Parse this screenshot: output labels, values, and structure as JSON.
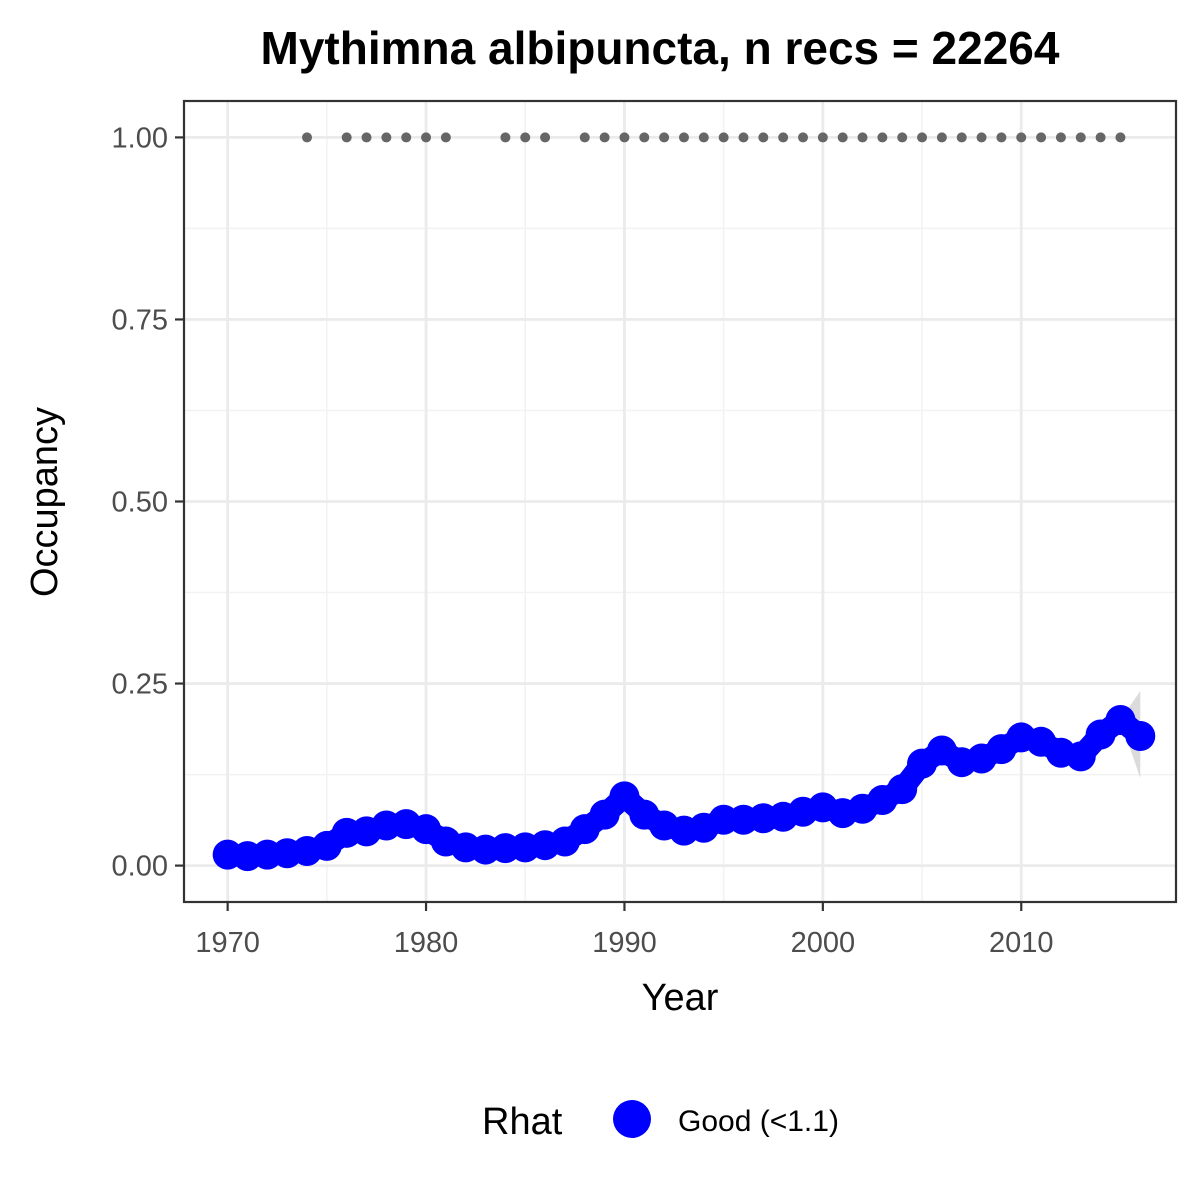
{
  "chart_data": {
    "type": "line",
    "title": "Mythimna albipuncta, n recs = 22264",
    "xlabel": "Year",
    "ylabel": "Occupancy",
    "xlim": [
      1967.8,
      2017.8
    ],
    "ylim": [
      -0.05,
      1.05
    ],
    "x_ticks": [
      1970,
      1980,
      1990,
      2000,
      2010
    ],
    "x_tick_labels": [
      "1970",
      "1980",
      "1990",
      "2000",
      "2010"
    ],
    "y_ticks": [
      0,
      0.25,
      0.5,
      0.75,
      1.0
    ],
    "y_tick_labels": [
      "0.00",
      "0.25",
      "0.50",
      "0.75",
      "1.00"
    ],
    "grid": true,
    "legend": {
      "position": "bottom",
      "title": "Rhat",
      "entries": [
        {
          "label": "Good (<1.1)",
          "color": "#0000ff"
        }
      ]
    },
    "series": [
      {
        "type": "line-points",
        "color": "#0000ff",
        "x": [
          1970,
          1971,
          1972,
          1973,
          1974,
          1975,
          1976,
          1977,
          1978,
          1979,
          1980,
          1981,
          1982,
          1983,
          1984,
          1985,
          1986,
          1987,
          1988,
          1989,
          1990,
          1991,
          1992,
          1993,
          1994,
          1995,
          1996,
          1997,
          1998,
          1999,
          2000,
          2001,
          2002,
          2003,
          2004,
          2005,
          2006,
          2007,
          2008,
          2009,
          2010,
          2011,
          2012,
          2013,
          2014,
          2015,
          2016
        ],
        "values": [
          0.015,
          0.013,
          0.015,
          0.017,
          0.02,
          0.027,
          0.045,
          0.047,
          0.055,
          0.057,
          0.05,
          0.033,
          0.025,
          0.022,
          0.024,
          0.025,
          0.028,
          0.033,
          0.05,
          0.07,
          0.095,
          0.07,
          0.055,
          0.048,
          0.052,
          0.063,
          0.063,
          0.065,
          0.067,
          0.074,
          0.08,
          0.072,
          0.078,
          0.09,
          0.105,
          0.14,
          0.158,
          0.142,
          0.147,
          0.16,
          0.176,
          0.17,
          0.155,
          0.15,
          0.18,
          0.2,
          0.178
        ]
      },
      {
        "type": "records-dots",
        "color": "#666666",
        "x": [
          1974,
          1976,
          1977,
          1978,
          1979,
          1980,
          1981,
          1984,
          1985,
          1986,
          1988,
          1989,
          1990,
          1991,
          1992,
          1993,
          1994,
          1995,
          1996,
          1997,
          1998,
          1999,
          2000,
          2001,
          2002,
          2003,
          2004,
          2005,
          2006,
          2007,
          2008,
          2009,
          2010,
          2011,
          2012,
          2013,
          2014,
          2015
        ],
        "values": [
          1,
          1,
          1,
          1,
          1,
          1,
          1,
          1,
          1,
          1,
          1,
          1,
          1,
          1,
          1,
          1,
          1,
          1,
          1,
          1,
          1,
          1,
          1,
          1,
          1,
          1,
          1,
          1,
          1,
          1,
          1,
          1,
          1,
          1,
          1,
          1,
          1,
          1
        ]
      }
    ],
    "credible_interval": {
      "color": "#bebebe",
      "x": [
        2015,
        2016
      ],
      "lower": [
        0.2,
        0.12
      ],
      "upper": [
        0.2,
        0.24
      ]
    }
  }
}
